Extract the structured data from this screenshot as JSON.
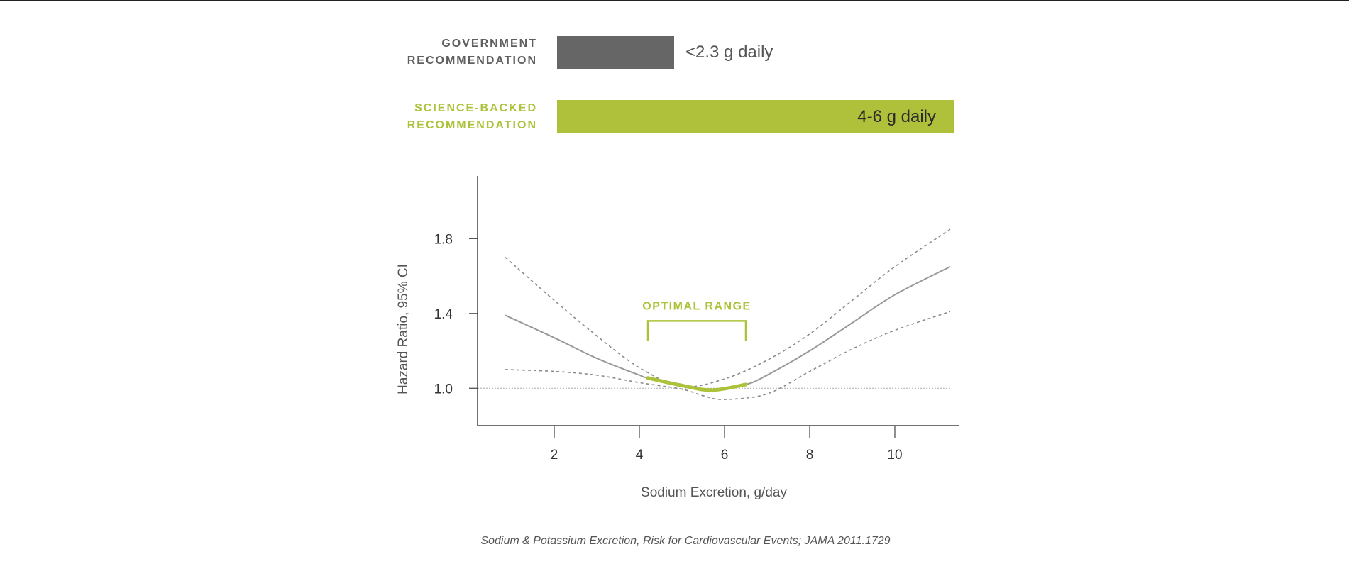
{
  "recommendations": {
    "government": {
      "label_line1": "GOVERNMENT",
      "label_line2": "RECOMMENDATION",
      "value": "<2.3 g daily",
      "color": "#666666"
    },
    "science": {
      "label_line1": "SCIENCE-BACKED",
      "label_line2": "RECOMMENDATION",
      "value": "4-6 g daily",
      "color": "#afc13b"
    }
  },
  "chart_data": {
    "type": "line",
    "xlabel": "Sodium Excretion, g/day",
    "ylabel": "Hazard Ratio, 95% CI",
    "xlim": [
      0.2,
      11.5
    ],
    "ylim": [
      0.8,
      2.135
    ],
    "xticks": [
      2,
      4,
      6,
      8,
      10
    ],
    "xtick_labels": [
      "2",
      "4",
      "6",
      "8",
      "10"
    ],
    "yticks": [
      1.0,
      1.4,
      1.8
    ],
    "ytick_labels": [
      "1.0",
      "1.4",
      "1.8"
    ],
    "reference_line": 1.0,
    "series": [
      {
        "name": "hazard-ratio",
        "style": "solid",
        "x": [
          0.85,
          2,
          3,
          4,
          4.2,
          5,
          5.7,
          6.5,
          7,
          8,
          9,
          10,
          11.3
        ],
        "y": [
          1.39,
          1.27,
          1.16,
          1.07,
          1.055,
          1.015,
          0.99,
          1.02,
          1.07,
          1.2,
          1.35,
          1.5,
          1.65
        ]
      },
      {
        "name": "upper-95-ci",
        "style": "dashed",
        "x": [
          0.85,
          2,
          3,
          4,
          5,
          6,
          7,
          8,
          9,
          10,
          11.3
        ],
        "y": [
          1.7,
          1.47,
          1.28,
          1.11,
          1.01,
          1.05,
          1.15,
          1.29,
          1.47,
          1.65,
          1.85
        ]
      },
      {
        "name": "lower-95-ci",
        "style": "dashed",
        "x": [
          0.85,
          2,
          3,
          4,
          5,
          5.5,
          6,
          7,
          8,
          9,
          10,
          11.3
        ],
        "y": [
          1.1,
          1.09,
          1.07,
          1.03,
          0.995,
          0.96,
          0.94,
          0.97,
          1.09,
          1.21,
          1.31,
          1.41
        ]
      }
    ],
    "highlight": {
      "x_from": 4.2,
      "x_to": 6.5,
      "color": "#adc23a"
    },
    "annotation": {
      "text": "OPTIMAL RANGE",
      "x_from": 4.2,
      "x_to": 6.5,
      "y": 1.36
    }
  },
  "caption": "Sodium & Potassium Excretion, Risk for Cardiovascular Events; JAMA 2011.1729"
}
